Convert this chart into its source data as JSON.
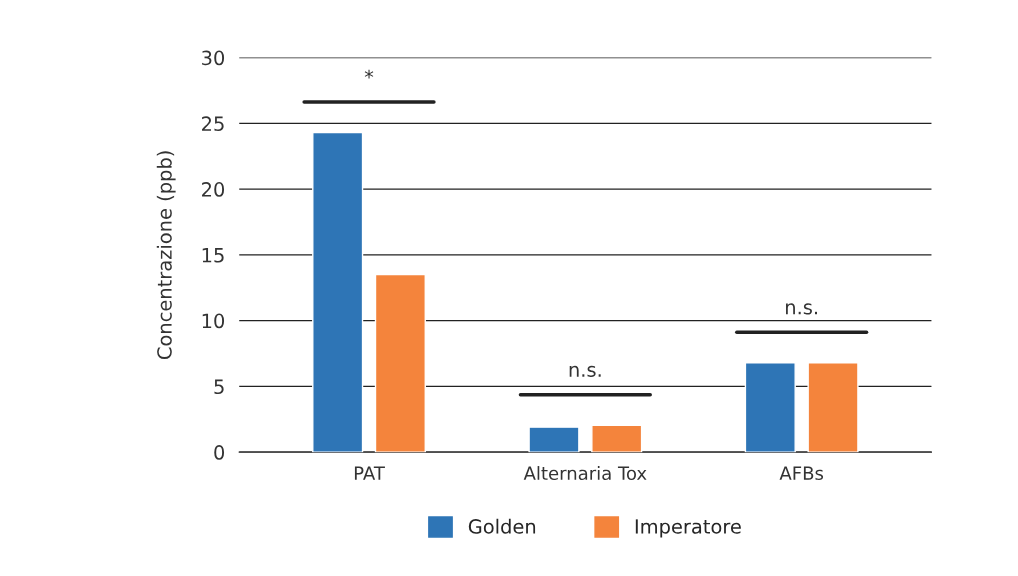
{
  "chart_data": {
    "type": "bar",
    "ylabel": "Concentrazione (ppb)",
    "categories": [
      "PAT",
      "Alternaria Tox",
      "AFBs"
    ],
    "series": [
      {
        "name": "Golden",
        "color": "#2e75b6",
        "values": [
          24.3,
          1.9,
          6.8
        ]
      },
      {
        "name": "Imperatore",
        "color": "#f4843c",
        "values": [
          13.5,
          2.05,
          6.8
        ]
      }
    ],
    "ylim": [
      0,
      30
    ],
    "yticks": [
      0,
      5,
      10,
      15,
      20,
      25,
      30
    ],
    "grid": "y",
    "legend": "bottom",
    "annotations": [
      "*",
      "n.s.",
      "n.s."
    ]
  }
}
